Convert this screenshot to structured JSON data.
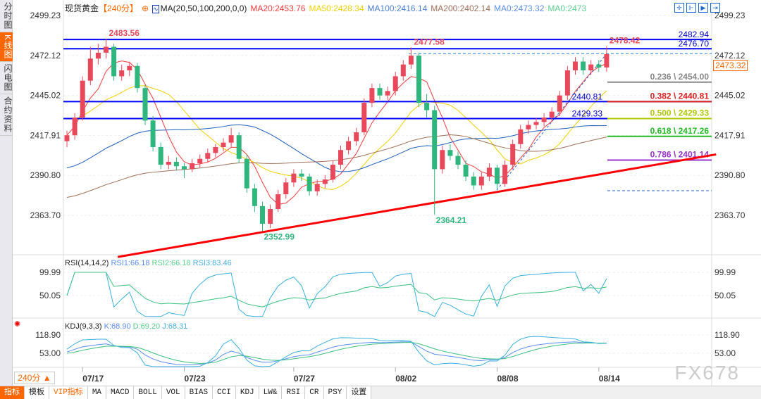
{
  "sidebar": {
    "items": [
      {
        "label": "分时图",
        "active": false
      },
      {
        "label": "K线图",
        "active": true
      },
      {
        "label": "闪电图",
        "active": false
      },
      {
        "label": "合约资料",
        "active": false
      }
    ]
  },
  "header": {
    "symbol": "现货黄金",
    "period": "【240分】",
    "ma_label": "MA(20,50,100,200,0,0)",
    "ma20": "MA20:2453.76",
    "ma50": "MA50:2428.34",
    "ma100": "MA100:2416.14",
    "ma200": "MA200:2402.14",
    "ma0a": "MA0:2473.32",
    "ma0b": "MA0:2473"
  },
  "colors": {
    "up": "#e8485a",
    "down": "#2eb67d",
    "ma20": "#f03c3c",
    "ma50": "#f2d200",
    "ma100": "#1f5fbf",
    "ma200": "#a0705a",
    "hline": "#0000ff",
    "trend": "#ff0000",
    "accent": "#ff6600"
  },
  "tools": [
    "crosshair-icon",
    "zoom-range-icon",
    "play-icon",
    "end-icon"
  ],
  "price_axis": {
    "ticks": [
      "2499.23",
      "2472.12",
      "2445.02",
      "2417.91",
      "2390.80",
      "2363.70"
    ],
    "current": "2473.32"
  },
  "rsi": {
    "label": "RSI(14,14,2)",
    "rsi1": "RSI1:66.18",
    "rsi2": "RSI2:66.18",
    "rsi3": "RSI3:83.46",
    "ticks": [
      "99.99",
      "50.05"
    ]
  },
  "kdj": {
    "label": "KDJ(9,3,3)",
    "k": "K:68.90",
    "d": "D:69.20",
    "j": "J:68.31",
    "ticks": [
      "118.90",
      "53.00"
    ]
  },
  "period_button": "240分 ▲",
  "toolbar": [
    "指标",
    "模板",
    "VIP指标",
    "MA",
    "MACD",
    "BOLL",
    "VOL",
    "BIAS",
    "CCI",
    "KDJ",
    "LW&",
    "RSI",
    "CR",
    "PSY",
    "设置"
  ],
  "watermark": "FX678",
  "chart_data": {
    "type": "candlestick",
    "ylim": [
      2363.7,
      2499.23
    ],
    "x_ticks": [
      {
        "label": "07/17",
        "index": 2
      },
      {
        "label": "07/23",
        "index": 15
      },
      {
        "label": "07/27",
        "index": 29
      },
      {
        "label": "08/02",
        "index": 42
      },
      {
        "label": "08/08",
        "index": 55
      },
      {
        "label": "08/14",
        "index": 68
      }
    ],
    "ohlc": [
      [
        2414,
        2421,
        2410,
        2418
      ],
      [
        2418,
        2433,
        2415,
        2430
      ],
      [
        2430,
        2458,
        2428,
        2455
      ],
      [
        2455,
        2478,
        2452,
        2470
      ],
      [
        2470,
        2480,
        2466,
        2474
      ],
      [
        2474,
        2483.56,
        2470,
        2478
      ],
      [
        2478,
        2480,
        2455,
        2458
      ],
      [
        2458,
        2466,
        2455,
        2462
      ],
      [
        2462,
        2468,
        2458,
        2465
      ],
      [
        2465,
        2467,
        2447,
        2450
      ],
      [
        2450,
        2452,
        2425,
        2428
      ],
      [
        2428,
        2431,
        2407,
        2410
      ],
      [
        2410,
        2413,
        2395,
        2398
      ],
      [
        2398,
        2404,
        2395,
        2400
      ],
      [
        2400,
        2403,
        2394,
        2397
      ],
      [
        2397,
        2399,
        2389,
        2395
      ],
      [
        2395,
        2402,
        2393,
        2399
      ],
      [
        2399,
        2405,
        2396,
        2402
      ],
      [
        2402,
        2409,
        2400,
        2406
      ],
      [
        2406,
        2412,
        2403,
        2410
      ],
      [
        2410,
        2416,
        2407,
        2413
      ],
      [
        2413,
        2423,
        2410,
        2418
      ],
      [
        2418,
        2420,
        2399,
        2402
      ],
      [
        2402,
        2405,
        2379,
        2382
      ],
      [
        2382,
        2385,
        2366,
        2370
      ],
      [
        2370,
        2373,
        2352.99,
        2358
      ],
      [
        2358,
        2371,
        2355,
        2368
      ],
      [
        2368,
        2381,
        2366,
        2378
      ],
      [
        2378,
        2389,
        2375,
        2386
      ],
      [
        2386,
        2395,
        2383,
        2392
      ],
      [
        2392,
        2395,
        2387,
        2390
      ],
      [
        2390,
        2392,
        2377,
        2380
      ],
      [
        2380,
        2388,
        2377,
        2385
      ],
      [
        2385,
        2391,
        2382,
        2388
      ],
      [
        2388,
        2401,
        2386,
        2398
      ],
      [
        2398,
        2411,
        2395,
        2408
      ],
      [
        2408,
        2417,
        2405,
        2414
      ],
      [
        2414,
        2423,
        2411,
        2420
      ],
      [
        2420,
        2443,
        2418,
        2440
      ],
      [
        2440,
        2453,
        2437,
        2450
      ],
      [
        2450,
        2453,
        2442,
        2445
      ],
      [
        2445,
        2451,
        2442,
        2448
      ],
      [
        2448,
        2461,
        2445,
        2458
      ],
      [
        2458,
        2469,
        2455,
        2466
      ],
      [
        2466,
        2477.58,
        2463,
        2472
      ],
      [
        2472,
        2474,
        2437,
        2440
      ],
      [
        2440,
        2446,
        2430,
        2435
      ],
      [
        2435,
        2438,
        2364.21,
        2395
      ],
      [
        2395,
        2411,
        2392,
        2408
      ],
      [
        2408,
        2412,
        2401,
        2404
      ],
      [
        2404,
        2407,
        2395,
        2398
      ],
      [
        2398,
        2401,
        2387,
        2390
      ],
      [
        2390,
        2393,
        2381,
        2384
      ],
      [
        2384,
        2393,
        2381,
        2390
      ],
      [
        2390,
        2399,
        2387,
        2396
      ],
      [
        2396,
        2398,
        2382,
        2385
      ],
      [
        2385,
        2401,
        2383,
        2398
      ],
      [
        2398,
        2415,
        2395,
        2412
      ],
      [
        2412,
        2425,
        2409,
        2422
      ],
      [
        2422,
        2428,
        2419,
        2425
      ],
      [
        2425,
        2430,
        2422,
        2427
      ],
      [
        2427,
        2433,
        2424,
        2430
      ],
      [
        2430,
        2437,
        2427,
        2434
      ],
      [
        2434,
        2448,
        2431,
        2445
      ],
      [
        2445,
        2465,
        2442,
        2462
      ],
      [
        2462,
        2471,
        2459,
        2468
      ],
      [
        2468,
        2471,
        2459,
        2462
      ],
      [
        2462,
        2469,
        2459,
        2466
      ],
      [
        2466,
        2469,
        2461,
        2464
      ],
      [
        2464,
        2478.42,
        2461,
        2473
      ]
    ],
    "annotations": [
      {
        "label": "2483.56",
        "index": 5,
        "price": 2483.56,
        "pos": "above",
        "color": "#e8485a"
      },
      {
        "label": "2477.58",
        "index": 44,
        "price": 2477.58,
        "pos": "above",
        "color": "#e8485a"
      },
      {
        "label": "2478.42",
        "index": 69,
        "price": 2478.42,
        "pos": "above",
        "color": "#e8485a"
      },
      {
        "label": "2352.99",
        "index": 25,
        "price": 2352.99,
        "pos": "below",
        "color": "#2eb67d"
      },
      {
        "label": "2364.21",
        "index": 47,
        "price": 2364.21,
        "pos": "below",
        "color": "#2eb67d"
      }
    ],
    "horizontal_lines": [
      {
        "label": "2482.94",
        "price": 2482.94
      },
      {
        "label": "2476.70",
        "price": 2476.7
      },
      {
        "label": "2440.81",
        "price": 2440.81
      },
      {
        "label": "2429.33",
        "price": 2429.33
      }
    ],
    "fibonacci": [
      {
        "label": "0.236 \\ 2454.00",
        "price": 2454.0,
        "color": "#888888"
      },
      {
        "label": "0.382 \\ 2440.81",
        "price": 2440.81,
        "color": "#e02020"
      },
      {
        "label": "0.500 \\ 2429.33",
        "price": 2429.33,
        "color": "#b0c800"
      },
      {
        "label": "0.618 \\ 2417.26",
        "price": 2417.26,
        "color": "#22bb22"
      },
      {
        "label": "0.786 \\ 2401.14",
        "price": 2401.14,
        "color": "#9933cc"
      }
    ],
    "trendline": {
      "from": {
        "index": 6.5,
        "price": 2335.5
      },
      "to": {
        "index": 83,
        "price": 2405.0
      }
    }
  }
}
